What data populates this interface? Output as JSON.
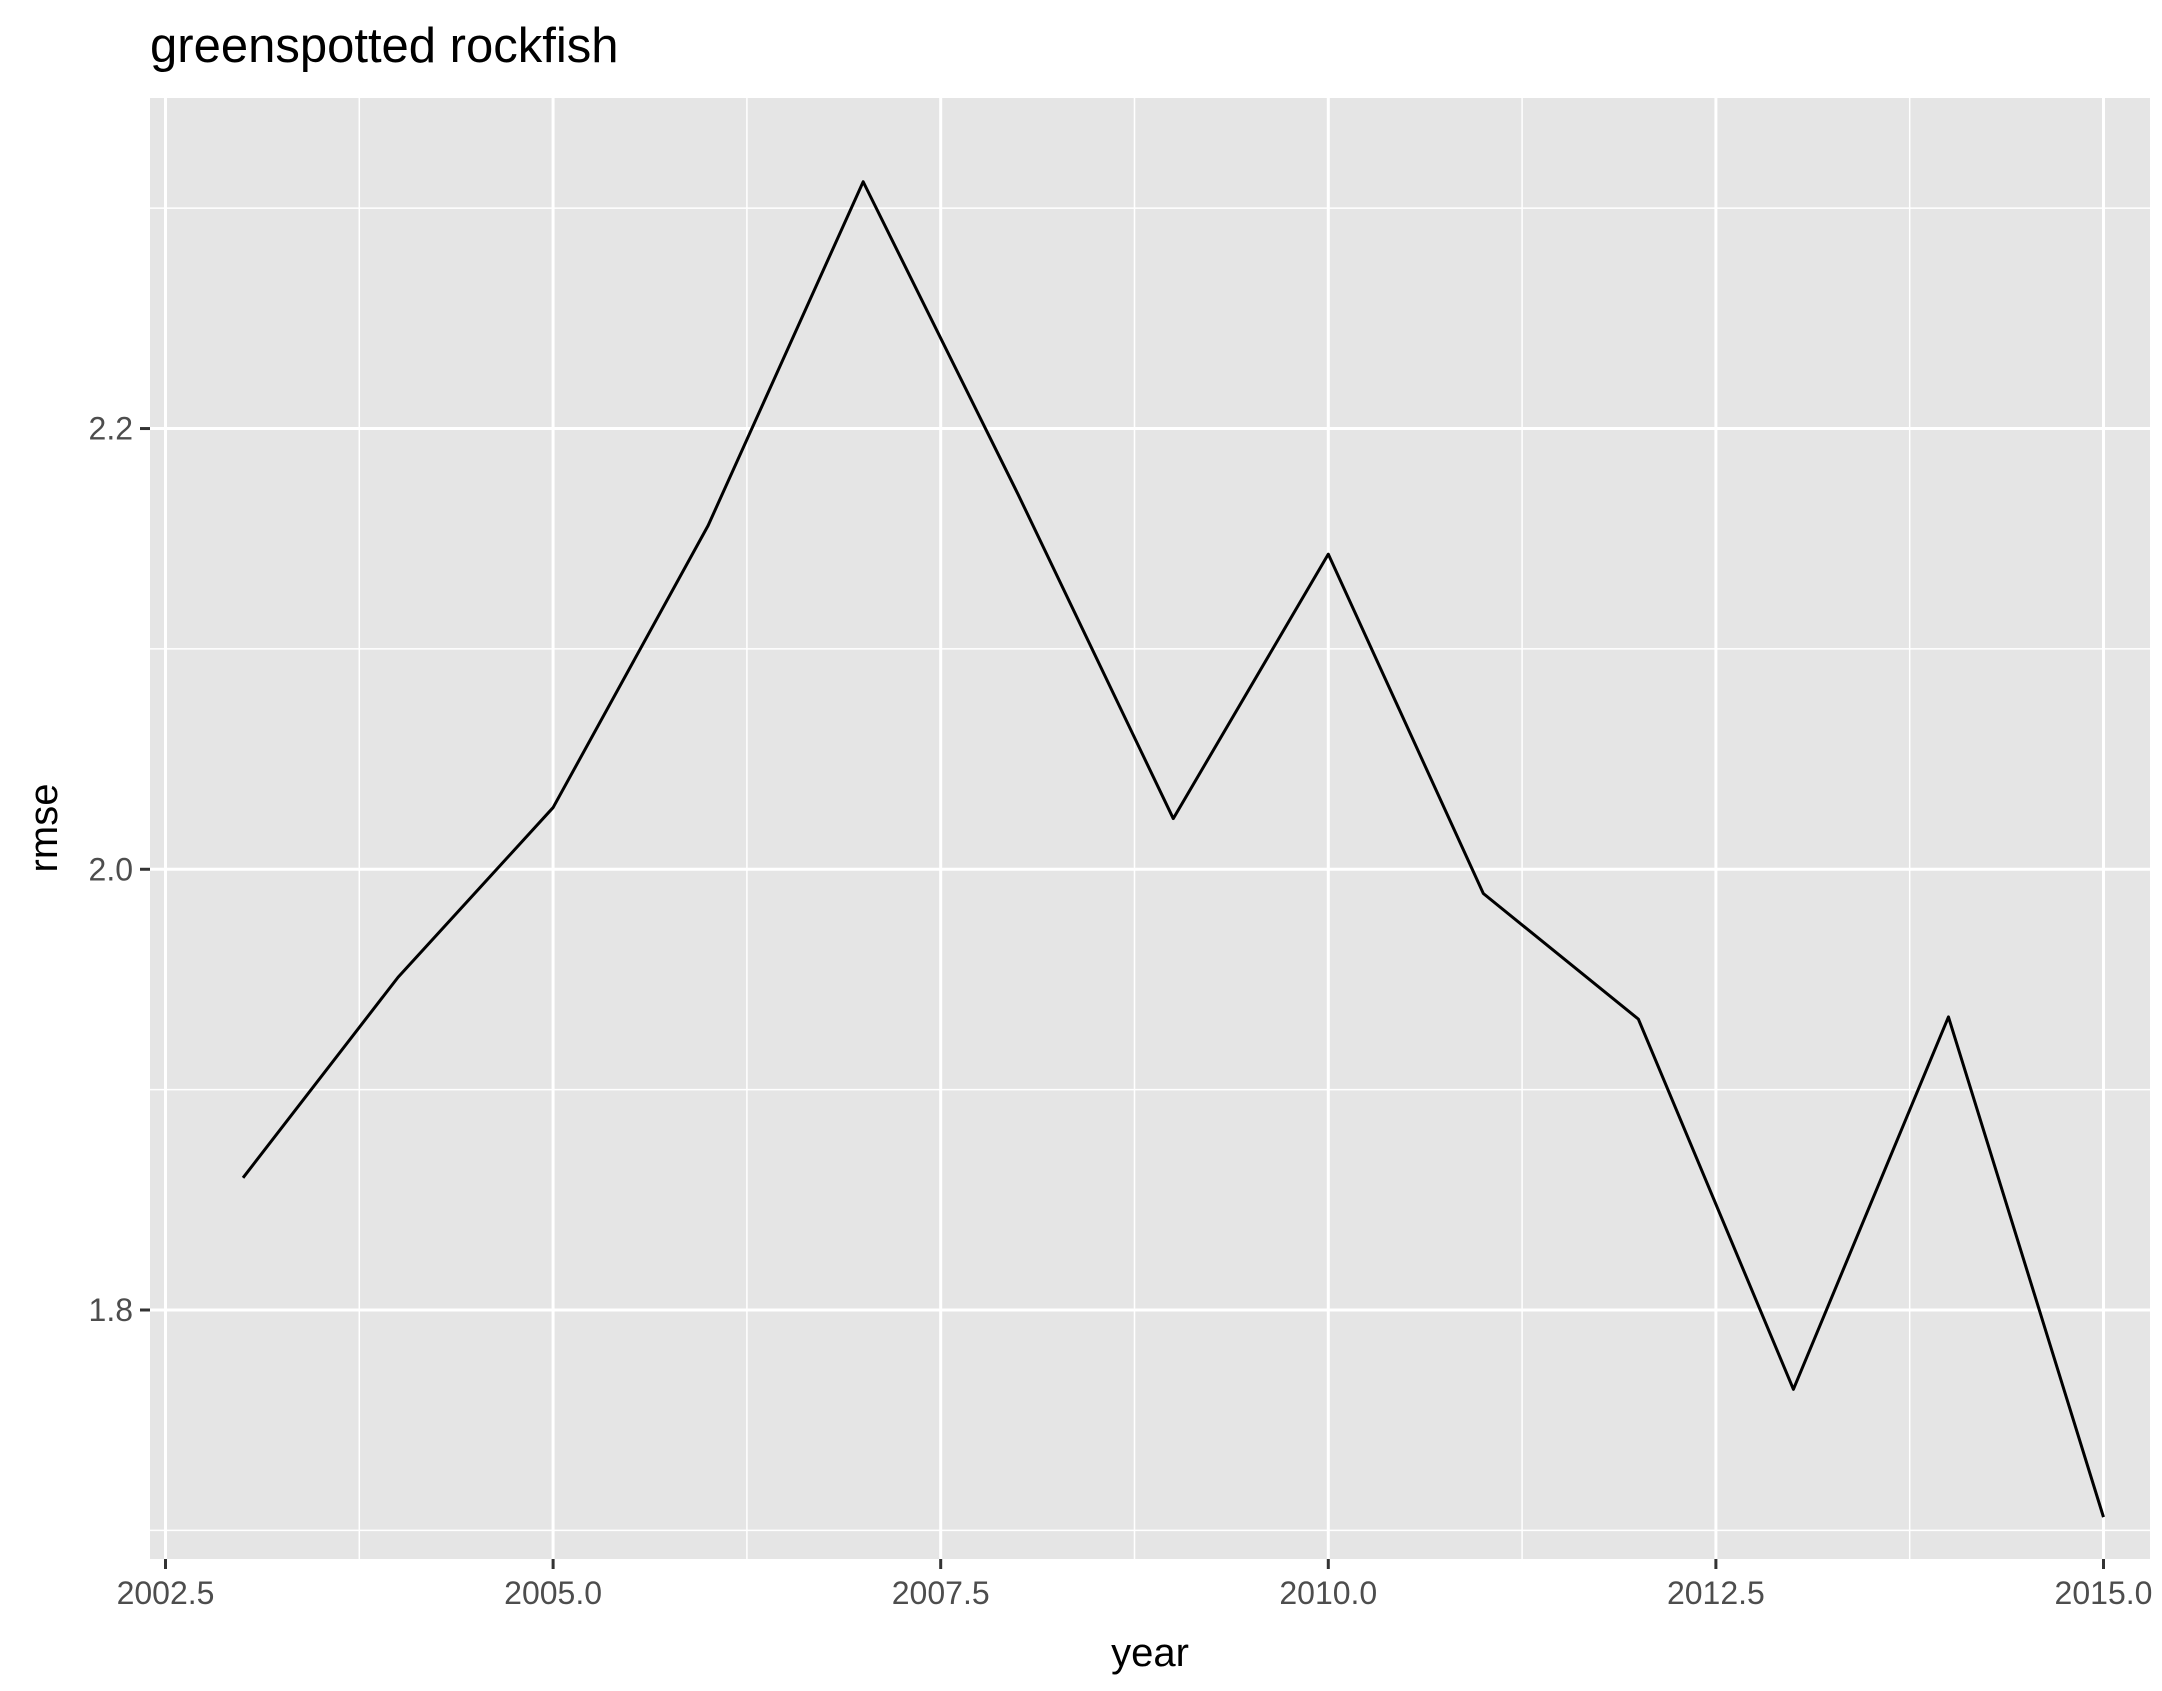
{
  "chart_data": {
    "type": "line",
    "title": "greenspotted rockfish",
    "xlabel": "year",
    "ylabel": "rmse",
    "xlim": [
      2002.4,
      2015.3
    ],
    "ylim": [
      1.687,
      2.35
    ],
    "x_ticks": [
      2002.5,
      2005.0,
      2007.5,
      2010.0,
      2012.5,
      2015.0
    ],
    "x_tick_labels": [
      "2002.5",
      "2005.0",
      "2007.5",
      "2010.0",
      "2012.5",
      "2015.0"
    ],
    "x_minor_ticks": [
      2003.75,
      2006.25,
      2008.75,
      2011.25,
      2013.75
    ],
    "y_ticks": [
      1.8,
      2.0,
      2.2
    ],
    "y_tick_labels": [
      "1.8",
      "2.0",
      "2.2"
    ],
    "y_minor_ticks": [
      1.7,
      1.9,
      2.1,
      2.3
    ],
    "grid": true,
    "legend": "none",
    "colors": {
      "panel_background": "#e5e5e5",
      "grid_line": "#ffffff",
      "series_line": "#000000",
      "tick_mark": "#333333"
    },
    "series": [
      {
        "x": [
          2003,
          2004,
          2005,
          2006,
          2007,
          2008,
          2009,
          2010,
          2011,
          2012,
          2013,
          2014,
          2015
        ],
        "values": [
          1.86,
          1.951,
          2.028,
          2.156,
          2.312,
          2.17,
          2.023,
          2.143,
          1.989,
          1.932,
          1.764,
          1.933,
          1.706
        ]
      }
    ]
  }
}
